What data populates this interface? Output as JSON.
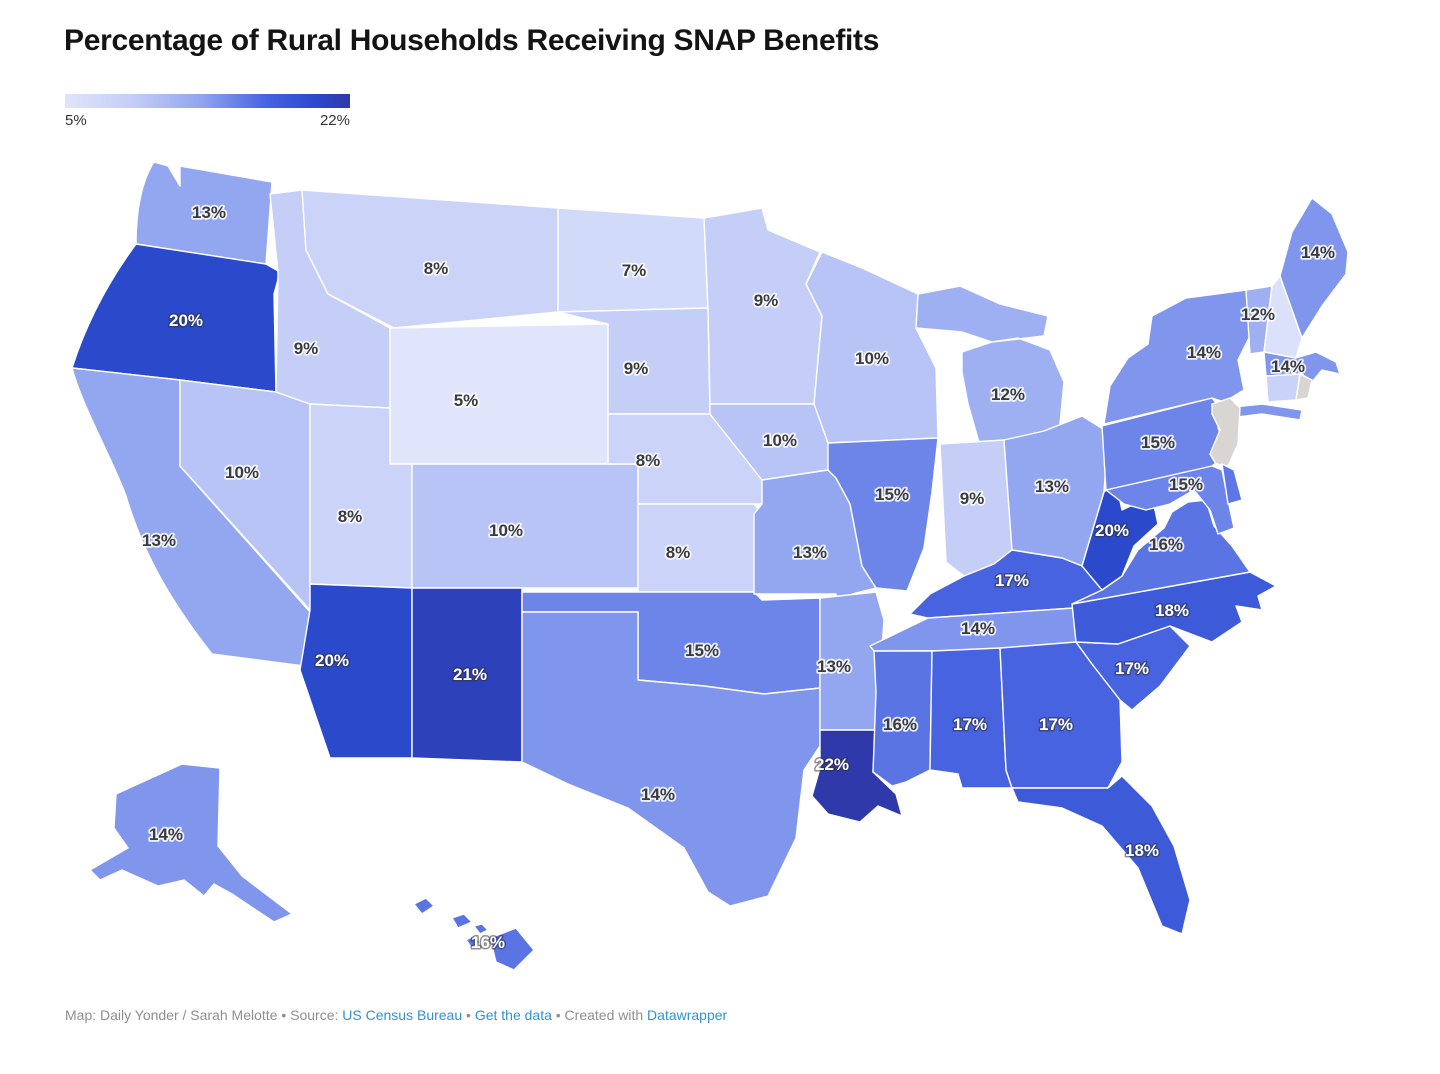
{
  "title": "Percentage of Rural Households Receiving SNAP Benefits",
  "legend": {
    "min_label": "5%",
    "max_label": "22%"
  },
  "color_scale": {
    "stops": [
      [
        5,
        "#e0e5fb"
      ],
      [
        9,
        "#c4cef7"
      ],
      [
        13,
        "#93a6f0"
      ],
      [
        17,
        "#4763e0"
      ],
      [
        20,
        "#2a49cb"
      ],
      [
        22,
        "#3039a9"
      ]
    ],
    "no_data_color": "#d8d5d2"
  },
  "footer": {
    "prefix": "Map: Daily Yonder / Sarah Melotte • Source: ",
    "source_link": "US Census Bureau",
    "sep1": " • ",
    "data_link": "Get the data",
    "sep2": " • Created with ",
    "tool_link": "Datawrapper"
  },
  "chart_data": {
    "type": "choropleth",
    "title": "Percentage of Rural Households Receiving SNAP Benefits",
    "geography": "United States",
    "unit": "%",
    "legend_range": [
      5,
      22
    ],
    "states": [
      {
        "id": "WA",
        "name": "Washington",
        "value": 13,
        "label": "13%",
        "label_color": "dark"
      },
      {
        "id": "OR",
        "name": "Oregon",
        "value": 20,
        "label": "20%",
        "label_color": "white"
      },
      {
        "id": "CA",
        "name": "California",
        "value": 13,
        "label": "13%",
        "label_color": "dark"
      },
      {
        "id": "NV",
        "name": "Nevada",
        "value": 10,
        "label": "10%",
        "label_color": "dark"
      },
      {
        "id": "ID",
        "name": "Idaho",
        "value": 9,
        "label": "9%",
        "label_color": "dark"
      },
      {
        "id": "MT",
        "name": "Montana",
        "value": 8,
        "label": "8%",
        "label_color": "dark"
      },
      {
        "id": "WY",
        "name": "Wyoming",
        "value": 5,
        "label": "5%",
        "label_color": "dark"
      },
      {
        "id": "UT",
        "name": "Utah",
        "value": 8,
        "label": "8%",
        "label_color": "dark"
      },
      {
        "id": "CO",
        "name": "Colorado",
        "value": 10,
        "label": "10%",
        "label_color": "dark"
      },
      {
        "id": "AZ",
        "name": "Arizona",
        "value": 20,
        "label": "20%",
        "label_color": "white"
      },
      {
        "id": "NM",
        "name": "New Mexico",
        "value": 21,
        "label": "21%",
        "label_color": "white"
      },
      {
        "id": "ND",
        "name": "North Dakota",
        "value": 7,
        "label": "7%",
        "label_color": "dark"
      },
      {
        "id": "SD",
        "name": "South Dakota",
        "value": 9,
        "label": "9%",
        "label_color": "dark"
      },
      {
        "id": "NE",
        "name": "Nebraska",
        "value": 8,
        "label": "8%",
        "label_color": "dark"
      },
      {
        "id": "KS",
        "name": "Kansas",
        "value": 8,
        "label": "8%",
        "label_color": "dark"
      },
      {
        "id": "OK",
        "name": "Oklahoma",
        "value": 15,
        "label": "15%",
        "label_color": "dark"
      },
      {
        "id": "TX",
        "name": "Texas",
        "value": 14,
        "label": "14%",
        "label_color": "dark"
      },
      {
        "id": "MN",
        "name": "Minnesota",
        "value": 9,
        "label": "9%",
        "label_color": "dark"
      },
      {
        "id": "IA",
        "name": "Iowa",
        "value": 10,
        "label": "10%",
        "label_color": "dark"
      },
      {
        "id": "MO",
        "name": "Missouri",
        "value": 13,
        "label": "13%",
        "label_color": "dark"
      },
      {
        "id": "AR",
        "name": "Arkansas",
        "value": 13,
        "label": "13%",
        "label_color": "dark"
      },
      {
        "id": "LA",
        "name": "Louisiana",
        "value": 22,
        "label": "22%",
        "label_color": "white"
      },
      {
        "id": "WI",
        "name": "Wisconsin",
        "value": 10,
        "label": "10%",
        "label_color": "dark"
      },
      {
        "id": "IL",
        "name": "Illinois",
        "value": 15,
        "label": "15%",
        "label_color": "dark"
      },
      {
        "id": "MI",
        "name": "Michigan",
        "value": 12,
        "label": "12%",
        "label_color": "dark"
      },
      {
        "id": "IN",
        "name": "Indiana",
        "value": 9,
        "label": "9%",
        "label_color": "dark"
      },
      {
        "id": "OH",
        "name": "Ohio",
        "value": 13,
        "label": "13%",
        "label_color": "dark"
      },
      {
        "id": "KY",
        "name": "Kentucky",
        "value": 17,
        "label": "17%",
        "label_color": "white"
      },
      {
        "id": "TN",
        "name": "Tennessee",
        "value": 14,
        "label": "14%",
        "label_color": "dark"
      },
      {
        "id": "MS",
        "name": "Mississippi",
        "value": 16,
        "label": "16%",
        "label_color": "dark"
      },
      {
        "id": "AL",
        "name": "Alabama",
        "value": 17,
        "label": "17%",
        "label_color": "white"
      },
      {
        "id": "GA",
        "name": "Georgia",
        "value": 17,
        "label": "17%",
        "label_color": "white"
      },
      {
        "id": "FL",
        "name": "Florida",
        "value": 18,
        "label": "18%",
        "label_color": "white"
      },
      {
        "id": "SC",
        "name": "South Carolina",
        "value": 17,
        "label": "17%",
        "label_color": "white"
      },
      {
        "id": "NC",
        "name": "North Carolina",
        "value": 18,
        "label": "18%",
        "label_color": "white"
      },
      {
        "id": "VA",
        "name": "Virginia",
        "value": 16,
        "label": "16%",
        "label_color": "dark"
      },
      {
        "id": "WV",
        "name": "West Virginia",
        "value": 20,
        "label": "20%",
        "label_color": "white"
      },
      {
        "id": "PA",
        "name": "Pennsylvania",
        "value": 15,
        "label": "15%",
        "label_color": "dark"
      },
      {
        "id": "NY",
        "name": "New York",
        "value": 14,
        "label": "14%",
        "label_color": "dark"
      },
      {
        "id": "NJ",
        "name": "New Jersey",
        "no_data": true
      },
      {
        "id": "VT",
        "name": "Vermont",
        "value": 12,
        "label": "12%",
        "label_color": "dark"
      },
      {
        "id": "NH",
        "name": "New Hampshire",
        "color": "#dbe1fa"
      },
      {
        "id": "ME",
        "name": "Maine",
        "value": 14,
        "label": "14%",
        "label_color": "dark"
      },
      {
        "id": "MA",
        "name": "Massachusetts",
        "value": 14,
        "label": "14%",
        "label_color": "dark"
      },
      {
        "id": "CT",
        "name": "Connecticut",
        "color": "#c9d2f8"
      },
      {
        "id": "RI",
        "name": "Rhode Island",
        "no_data": true
      },
      {
        "id": "MD",
        "name": "Maryland",
        "value": 15,
        "label": "15%",
        "label_color": "dark"
      },
      {
        "id": "DE",
        "name": "Delaware",
        "color": "#5e76e8"
      },
      {
        "id": "AK",
        "name": "Alaska",
        "value": 14,
        "label": "14%",
        "label_color": "dark"
      },
      {
        "id": "HI",
        "name": "Hawaii",
        "value": 16,
        "label": "16%",
        "label_color": "white"
      }
    ]
  }
}
